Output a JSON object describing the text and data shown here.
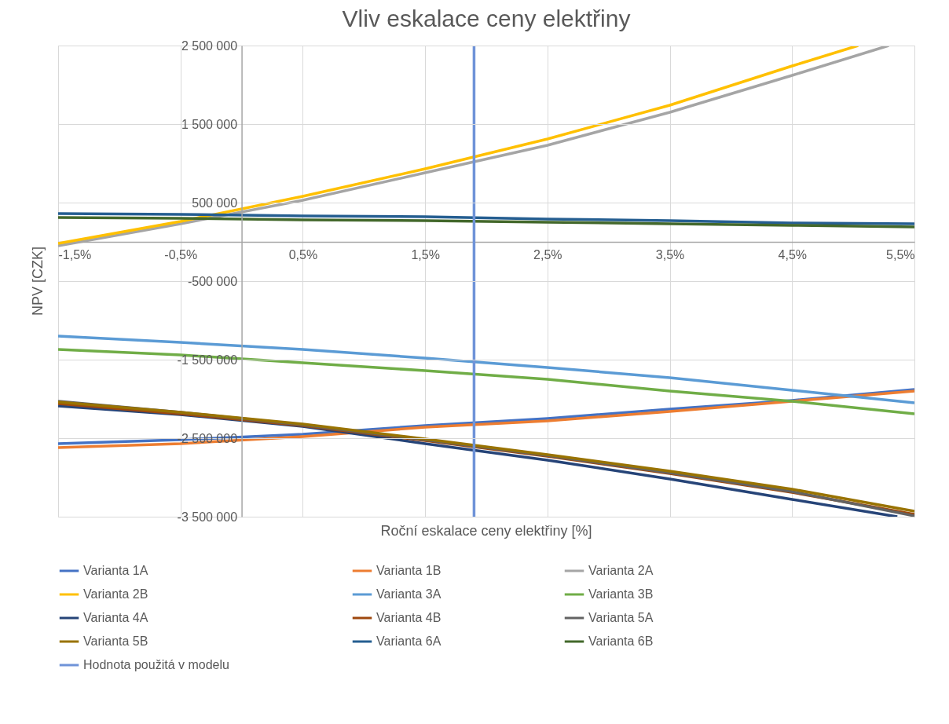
{
  "chart_data": {
    "type": "line",
    "title": "Vliv eskalace ceny elektřiny",
    "xlabel": "Roční eskalace ceny elektřiny [%]",
    "ylabel": "NPV [CZK]",
    "x": [
      -1.5,
      -0.5,
      0.5,
      1.5,
      2.5,
      3.5,
      4.5,
      5.5
    ],
    "series": [
      {
        "name": "Varianta 1A",
        "color": "#4472c4",
        "values": [
          -2570000,
          -2520000,
          -2450000,
          -2340000,
          -2250000,
          -2130000,
          -2020000,
          -1880000
        ]
      },
      {
        "name": "Varianta 1B",
        "color": "#ed7d31",
        "values": [
          -2620000,
          -2570000,
          -2480000,
          -2360000,
          -2280000,
          -2160000,
          -2030000,
          -1900000
        ]
      },
      {
        "name": "Varianta 2A",
        "color": "#a5a5a5",
        "x": [
          -1.5,
          -0.5,
          0.5,
          1.5,
          2.5,
          3.5,
          4.5,
          5.29
        ],
        "values": [
          -50000,
          230000,
          530000,
          880000,
          1230000,
          1650000,
          2120000,
          2500000
        ]
      },
      {
        "name": "Varianta 2B",
        "color": "#ffc000",
        "x": [
          -1.5,
          -0.5,
          0.5,
          1.5,
          2.5,
          3.5,
          4.5,
          5.04
        ],
        "values": [
          -20000,
          260000,
          580000,
          930000,
          1310000,
          1740000,
          2240000,
          2500000
        ]
      },
      {
        "name": "Varianta 3A",
        "color": "#5b9bd5",
        "values": [
          -1200000,
          -1280000,
          -1370000,
          -1480000,
          -1600000,
          -1730000,
          -1890000,
          -2050000
        ]
      },
      {
        "name": "Varianta 3B",
        "color": "#70ad47",
        "values": [
          -1370000,
          -1440000,
          -1540000,
          -1640000,
          -1750000,
          -1900000,
          -2030000,
          -2190000
        ]
      },
      {
        "name": "Varianta 4A",
        "color": "#264478",
        "x": [
          -1.5,
          -0.5,
          0.5,
          1.5,
          2.5,
          3.5,
          4.5,
          5.36
        ],
        "values": [
          -2090000,
          -2200000,
          -2350000,
          -2570000,
          -2780000,
          -3020000,
          -3280000,
          -3500000
        ]
      },
      {
        "name": "Varianta 4B",
        "color": "#9e480e",
        "values": [
          -2060000,
          -2190000,
          -2340000,
          -2530000,
          -2730000,
          -2950000,
          -3190000,
          -3470000
        ]
      },
      {
        "name": "Varianta 5A",
        "color": "#636363",
        "values": [
          -2030000,
          -2170000,
          -2330000,
          -2520000,
          -2720000,
          -2940000,
          -3180000,
          -3490000
        ]
      },
      {
        "name": "Varianta 5B",
        "color": "#997300",
        "values": [
          -2040000,
          -2170000,
          -2320000,
          -2510000,
          -2710000,
          -2920000,
          -3150000,
          -3430000
        ]
      },
      {
        "name": "Varianta 6A",
        "color": "#255e91",
        "values": [
          360000,
          350000,
          330000,
          320000,
          290000,
          270000,
          240000,
          230000
        ]
      },
      {
        "name": "Varianta 6B",
        "color": "#43682b",
        "values": [
          310000,
          300000,
          280000,
          270000,
          250000,
          230000,
          210000,
          190000
        ]
      },
      {
        "name": "Hodnota použitá v modelu",
        "color": "#6f93d8",
        "x": [
          1.9,
          1.9
        ],
        "values": [
          -3500000,
          2500000
        ]
      }
    ],
    "xlim": [
      -1.5,
      5.5
    ],
    "xticks": [
      {
        "value": -1.5,
        "label": "-1,5%"
      },
      {
        "value": -0.5,
        "label": "-0,5%"
      },
      {
        "value": 0.5,
        "label": "0,5%"
      },
      {
        "value": 1.5,
        "label": "1,5%"
      },
      {
        "value": 2.5,
        "label": "2,5%"
      },
      {
        "value": 3.5,
        "label": "3,5%"
      },
      {
        "value": 4.5,
        "label": "4,5%"
      },
      {
        "value": 5.5,
        "label": "5,5%"
      }
    ],
    "ylim": [
      -3500000,
      2500000
    ],
    "yticks": [
      {
        "value": -3500000,
        "label": "-3 500 000"
      },
      {
        "value": -2500000,
        "label": "-2 500 000"
      },
      {
        "value": -1500000,
        "label": "-1 500 000"
      },
      {
        "value": -500000,
        "label": "-500 000"
      },
      {
        "value": 500000,
        "label": "500 000"
      },
      {
        "value": 1500000,
        "label": "1 500 000"
      },
      {
        "value": 2500000,
        "label": "2 500 000"
      }
    ],
    "grid": true,
    "legend": "bottom"
  }
}
